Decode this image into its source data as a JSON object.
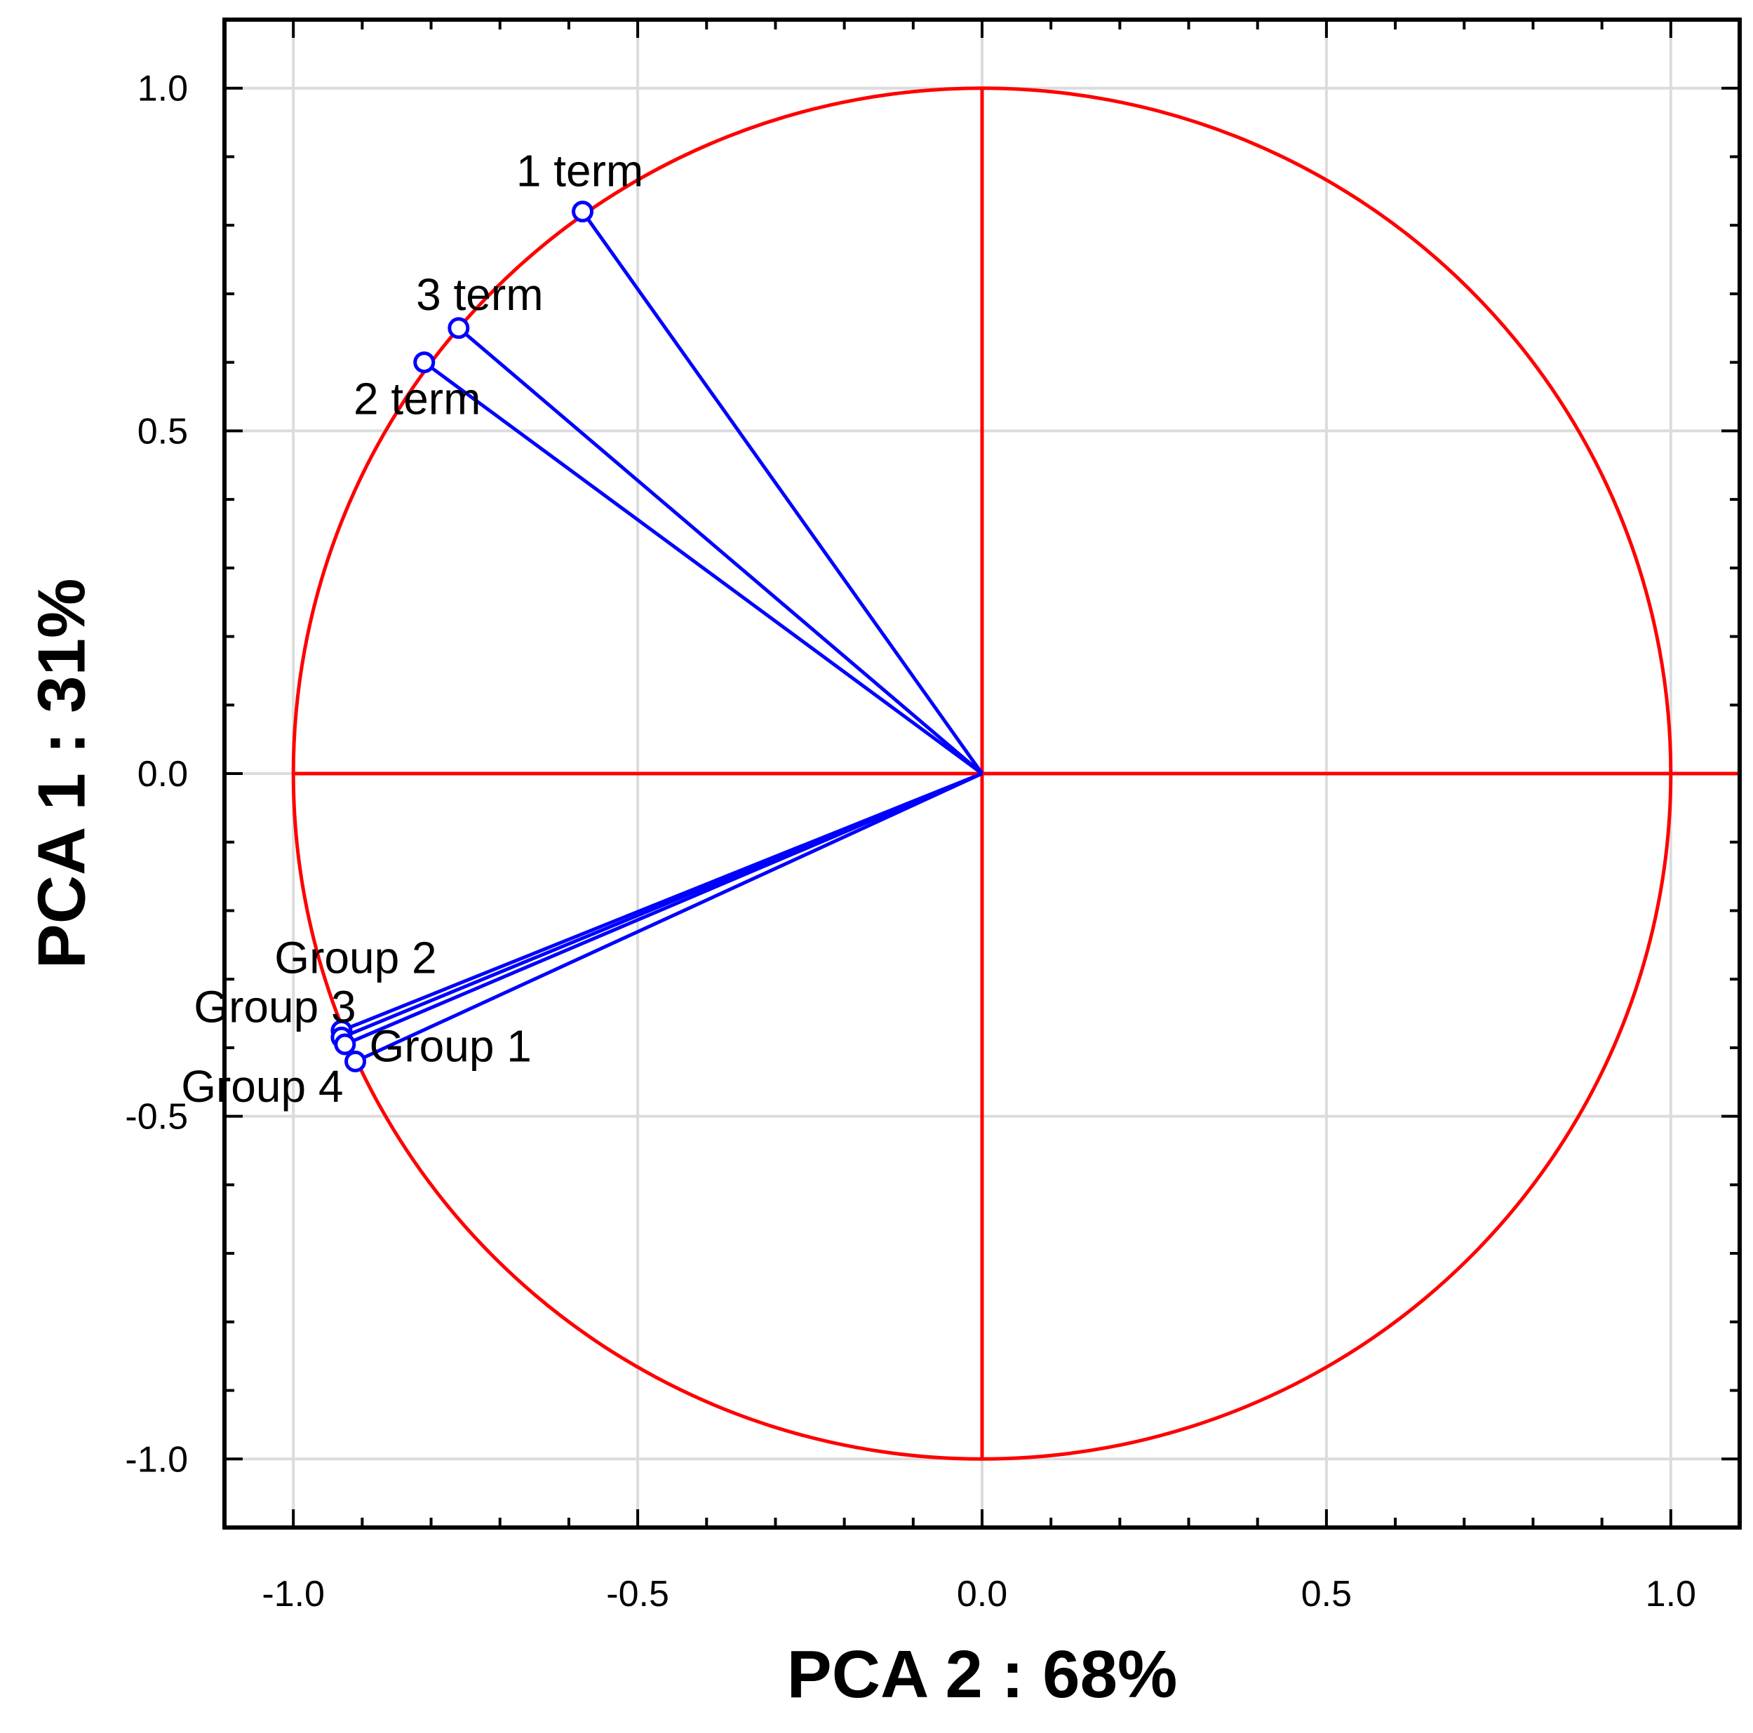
{
  "chart_data": {
    "type": "scatter",
    "subtype": "pca-correlation-circle",
    "xlabel": "PCA 2 : 68%",
    "ylabel": "PCA 1 : 31%",
    "xlim": [
      -1.1,
      1.1
    ],
    "ylim": [
      -1.1,
      1.1
    ],
    "xticks": [
      -1.0,
      -0.5,
      0.0,
      0.5,
      1.0
    ],
    "yticks": [
      -1.0,
      -0.5,
      0.0,
      0.5,
      1.0
    ],
    "xtick_labels": [
      "-1.0",
      "-0.5",
      "0.0",
      "0.5",
      "1.0"
    ],
    "ytick_labels": [
      "-1.0",
      "-0.5",
      "0.0",
      "0.5",
      "1.0"
    ],
    "grid": true,
    "unit_circle": true,
    "points": [
      {
        "name": "1 term",
        "x": -0.58,
        "y": 0.82
      },
      {
        "name": "3 term",
        "x": -0.76,
        "y": 0.65
      },
      {
        "name": "2 term",
        "x": -0.81,
        "y": 0.6
      },
      {
        "name": "Group 2",
        "x": -0.93,
        "y": -0.375
      },
      {
        "name": "Group 3",
        "x": -0.93,
        "y": -0.385
      },
      {
        "name": "Group 4",
        "x": -0.925,
        "y": -0.395
      },
      {
        "name": "Group 1",
        "x": -0.91,
        "y": -0.42
      }
    ],
    "colors": {
      "vectors": "#0000ff",
      "circle": "#ff0000",
      "axes_lines": "#ff0000",
      "grid": "#dcdcdc",
      "frame": "#000000"
    }
  }
}
